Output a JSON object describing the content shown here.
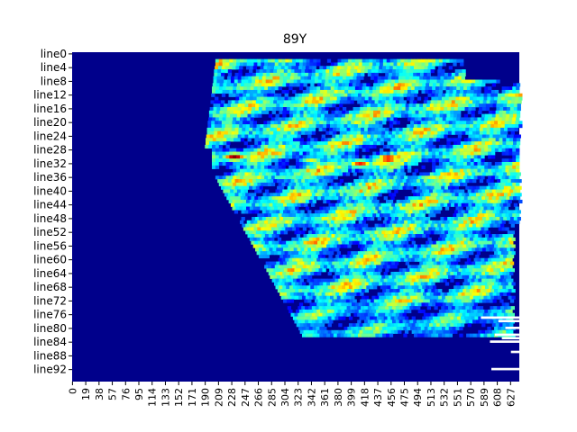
{
  "chart_data": {
    "type": "heatmap",
    "title": "89Y",
    "xlabel": "",
    "ylabel": "",
    "colormap": "jet",
    "background_color": "#00008b",
    "n_rows": 96,
    "n_cols": 640,
    "y_tick_labels": [
      "line0",
      "line4",
      "line8",
      "line12",
      "line16",
      "line20",
      "line24",
      "line28",
      "line32",
      "line36",
      "line40",
      "line44",
      "line48",
      "line52",
      "line56",
      "line60",
      "line64",
      "line68",
      "line72",
      "line76",
      "line80",
      "line84",
      "line88",
      "line92"
    ],
    "x_tick_labels": [
      "0",
      "19",
      "38",
      "57",
      "76",
      "95",
      "114",
      "133",
      "152",
      "171",
      "190",
      "209",
      "228",
      "247",
      "266",
      "285",
      "304",
      "323",
      "342",
      "361",
      "380",
      "399",
      "418",
      "437",
      "456",
      "475",
      "494",
      "513",
      "532",
      "551",
      "570",
      "589",
      "608",
      "627"
    ],
    "hotspots": [
      {
        "x": 230,
        "y": 30,
        "level": 1.0
      },
      {
        "x": 450,
        "y": 30.5,
        "level": 0.95
      },
      {
        "x": 410,
        "y": 32,
        "level": 0.85
      },
      {
        "x": 320,
        "y": 60,
        "level": 0.6
      },
      {
        "x": 340,
        "y": 31,
        "level": 0.6
      },
      {
        "x": 600,
        "y": 43,
        "level": 0.6
      }
    ]
  }
}
